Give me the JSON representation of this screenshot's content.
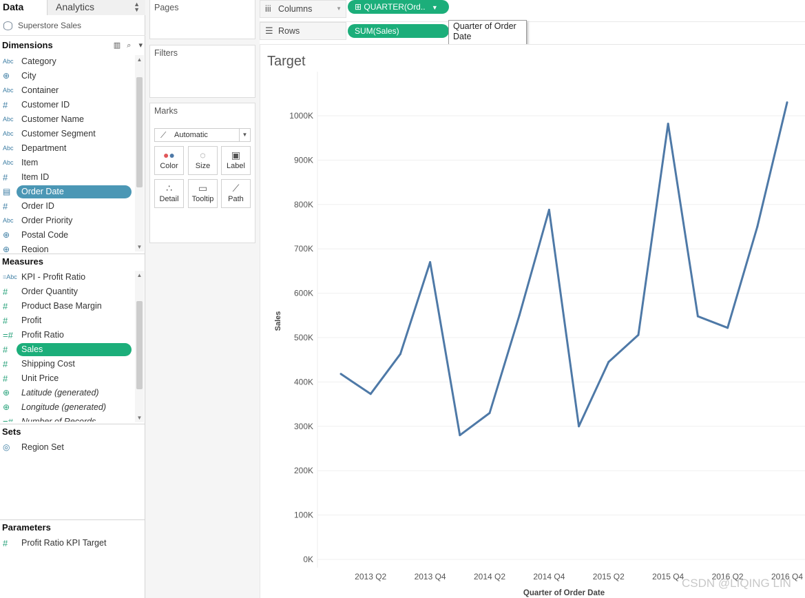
{
  "tabs": {
    "data": "Data",
    "analytics": "Analytics"
  },
  "datasource": "Superstore Sales",
  "dimensions": {
    "title": "Dimensions",
    "items": [
      {
        "icon": "Abc",
        "label": "Category"
      },
      {
        "icon": "globe",
        "label": "City"
      },
      {
        "icon": "Abc",
        "label": "Container"
      },
      {
        "icon": "#",
        "label": "Customer ID"
      },
      {
        "icon": "Abc",
        "label": "Customer Name"
      },
      {
        "icon": "Abc",
        "label": "Customer Segment"
      },
      {
        "icon": "Abc",
        "label": "Department"
      },
      {
        "icon": "Abc",
        "label": "Item"
      },
      {
        "icon": "#",
        "label": "Item ID"
      },
      {
        "icon": "calendar",
        "label": "Order Date"
      },
      {
        "icon": "#",
        "label": "Order ID"
      },
      {
        "icon": "Abc",
        "label": "Order Priority"
      },
      {
        "icon": "globe",
        "label": "Postal Code"
      },
      {
        "icon": "globe",
        "label": "Region"
      }
    ]
  },
  "measures": {
    "title": "Measures",
    "items": [
      {
        "icon": "=Abc",
        "label": "KPI - Profit Ratio"
      },
      {
        "icon": "#",
        "label": "Order Quantity"
      },
      {
        "icon": "#",
        "label": "Product Base Margin"
      },
      {
        "icon": "#",
        "label": "Profit"
      },
      {
        "icon": "=#",
        "label": "Profit Ratio"
      },
      {
        "icon": "#",
        "label": "Sales"
      },
      {
        "icon": "#",
        "label": "Shipping Cost"
      },
      {
        "icon": "#",
        "label": "Unit Price"
      },
      {
        "icon": "globe",
        "label": "Latitude (generated)"
      },
      {
        "icon": "globe",
        "label": "Longitude (generated)"
      },
      {
        "icon": "=#",
        "label": "Number of Records"
      }
    ]
  },
  "sets": {
    "title": "Sets",
    "items": [
      {
        "label": "Region Set"
      }
    ]
  },
  "parameters": {
    "title": "Parameters",
    "items": [
      {
        "label": "Profit Ratio KPI Target"
      }
    ]
  },
  "cards": {
    "pages": "Pages",
    "filters": "Filters",
    "marks": "Marks"
  },
  "marks": {
    "type": "Automatic",
    "buttons": {
      "color": "Color",
      "size": "Size",
      "label": "Label",
      "detail": "Detail",
      "tooltip": "Tooltip",
      "path": "Path"
    }
  },
  "shelves": {
    "columns_label": "Columns",
    "columns_pill": "QUARTER(Ord..",
    "rows_label": "Rows",
    "rows_pill": "SUM(Sales)",
    "tooltip": "Quarter of Order Date"
  },
  "colors": {
    "line": "#4e79a7",
    "pill": "#1cae7a",
    "selected_dim": "#4b97b5"
  },
  "watermark": "CSDN @LIQING LIN",
  "chart_data": {
    "type": "line",
    "title": "Target",
    "xlabel": "Quarter of Order Date",
    "ylabel": "Sales",
    "ylim": [
      0,
      1080000
    ],
    "yticks": [
      0,
      100000,
      200000,
      300000,
      400000,
      500000,
      600000,
      700000,
      800000,
      900000,
      1000000
    ],
    "ytick_labels": [
      "0K",
      "100K",
      "200K",
      "300K",
      "400K",
      "500K",
      "600K",
      "700K",
      "800K",
      "900K",
      "1000K"
    ],
    "x": [
      "2013 Q1",
      "2013 Q2",
      "2013 Q3",
      "2013 Q4",
      "2014 Q1",
      "2014 Q2",
      "2014 Q3",
      "2014 Q4",
      "2015 Q1",
      "2015 Q2",
      "2015 Q3",
      "2015 Q4",
      "2016 Q1",
      "2016 Q2",
      "2016 Q3",
      "2016 Q4"
    ],
    "xtick_labels": [
      "2013 Q2",
      "2013 Q4",
      "2014 Q2",
      "2014 Q4",
      "2015 Q2",
      "2015 Q4",
      "2016 Q2",
      "2016 Q4"
    ],
    "series": [
      {
        "values": [
          418000,
          373000,
          463000,
          670000,
          280000,
          330000,
          550000,
          788000,
          300000,
          445000,
          506000,
          982000,
          548000,
          522000,
          750000,
          1030000
        ]
      }
    ],
    "grid": true
  }
}
